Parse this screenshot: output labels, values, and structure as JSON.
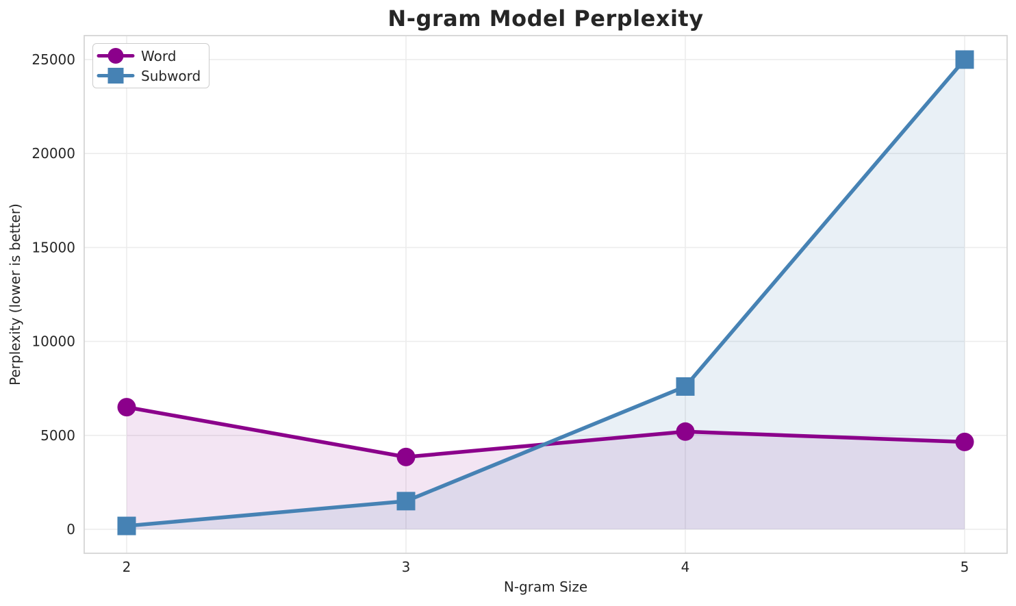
{
  "chart_data": {
    "type": "line",
    "title": "N-gram Model Perplexity",
    "xlabel": "N-gram Size",
    "ylabel": "Perplexity (lower is better)",
    "x": [
      2,
      3,
      4,
      5
    ],
    "xtick_labels": [
      "2",
      "3",
      "4",
      "5"
    ],
    "yticks": [
      0,
      5000,
      10000,
      15000,
      20000,
      25000
    ],
    "ytick_labels": [
      "0",
      "5000",
      "10000",
      "15000",
      "20000",
      "25000"
    ],
    "ylim": [
      0,
      25000
    ],
    "grid": true,
    "legend_position": "upper-left",
    "series": [
      {
        "name": "Word",
        "color": "#8B008B",
        "marker": "circle",
        "fill_opacity": 0.1,
        "values": [
          6500,
          3850,
          5200,
          4650
        ]
      },
      {
        "name": "Subword",
        "color": "#4682B4",
        "marker": "square",
        "fill_opacity": 0.12,
        "values": [
          180,
          1500,
          7600,
          25000
        ]
      }
    ]
  },
  "colors": {
    "background": "#ffffff",
    "grid": "#ececec",
    "spine": "#d5d5d5",
    "text": "#262626",
    "legend_border": "#cccccc"
  }
}
